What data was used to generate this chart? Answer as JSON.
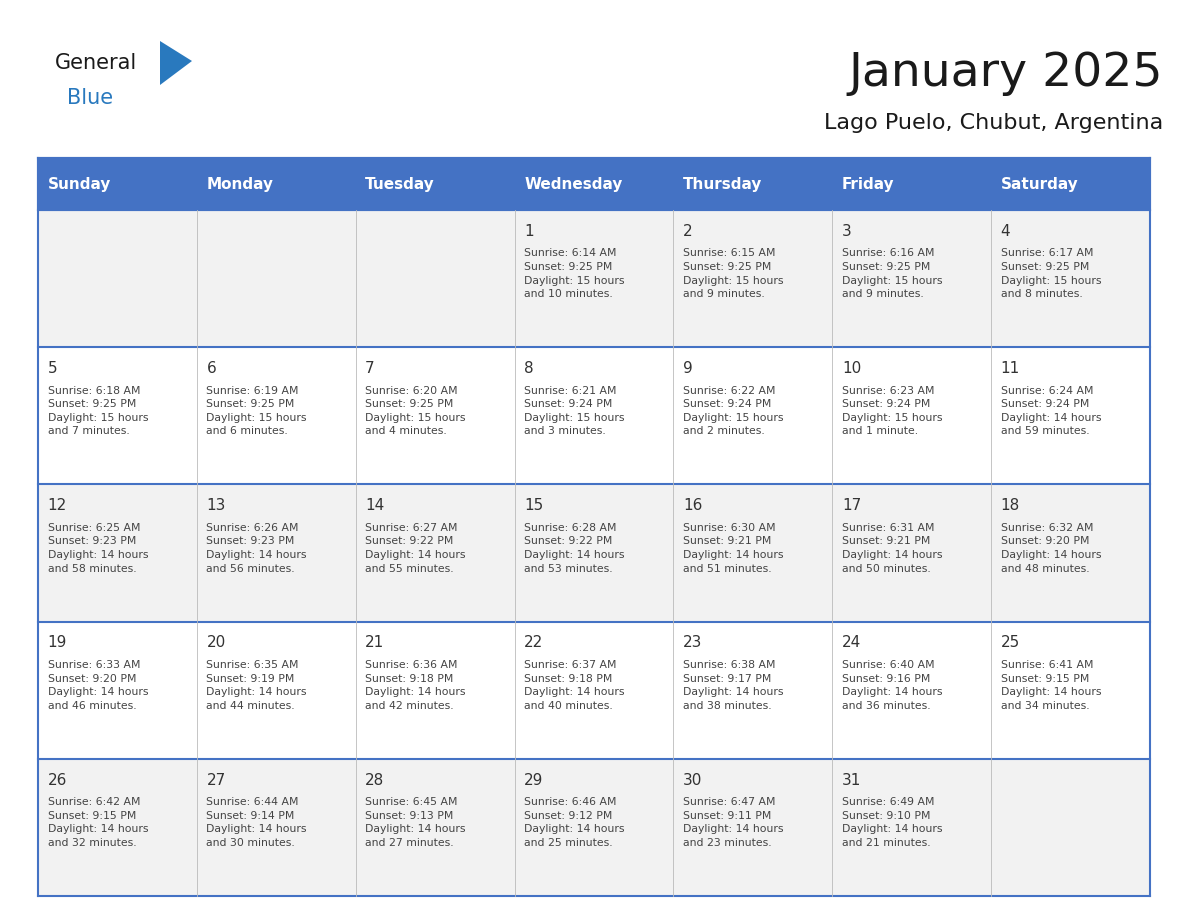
{
  "title": "January 2025",
  "subtitle": "Lago Puelo, Chubut, Argentina",
  "days_of_week": [
    "Sunday",
    "Monday",
    "Tuesday",
    "Wednesday",
    "Thursday",
    "Friday",
    "Saturday"
  ],
  "header_bg": "#4472C4",
  "header_text": "#FFFFFF",
  "row_bg_odd": "#F2F2F2",
  "row_bg_even": "#FFFFFF",
  "cell_text_color": "#444444",
  "day_num_color": "#333333",
  "border_color": "#4472C4",
  "title_color": "#1a1a1a",
  "subtitle_color": "#1a1a1a",
  "general_color": "#1a1a1a",
  "blue_color": "#2979BE",
  "calendar_data": [
    [
      {
        "day": "",
        "info": ""
      },
      {
        "day": "",
        "info": ""
      },
      {
        "day": "",
        "info": ""
      },
      {
        "day": "1",
        "info": "Sunrise: 6:14 AM\nSunset: 9:25 PM\nDaylight: 15 hours\nand 10 minutes."
      },
      {
        "day": "2",
        "info": "Sunrise: 6:15 AM\nSunset: 9:25 PM\nDaylight: 15 hours\nand 9 minutes."
      },
      {
        "day": "3",
        "info": "Sunrise: 6:16 AM\nSunset: 9:25 PM\nDaylight: 15 hours\nand 9 minutes."
      },
      {
        "day": "4",
        "info": "Sunrise: 6:17 AM\nSunset: 9:25 PM\nDaylight: 15 hours\nand 8 minutes."
      }
    ],
    [
      {
        "day": "5",
        "info": "Sunrise: 6:18 AM\nSunset: 9:25 PM\nDaylight: 15 hours\nand 7 minutes."
      },
      {
        "day": "6",
        "info": "Sunrise: 6:19 AM\nSunset: 9:25 PM\nDaylight: 15 hours\nand 6 minutes."
      },
      {
        "day": "7",
        "info": "Sunrise: 6:20 AM\nSunset: 9:25 PM\nDaylight: 15 hours\nand 4 minutes."
      },
      {
        "day": "8",
        "info": "Sunrise: 6:21 AM\nSunset: 9:24 PM\nDaylight: 15 hours\nand 3 minutes."
      },
      {
        "day": "9",
        "info": "Sunrise: 6:22 AM\nSunset: 9:24 PM\nDaylight: 15 hours\nand 2 minutes."
      },
      {
        "day": "10",
        "info": "Sunrise: 6:23 AM\nSunset: 9:24 PM\nDaylight: 15 hours\nand 1 minute."
      },
      {
        "day": "11",
        "info": "Sunrise: 6:24 AM\nSunset: 9:24 PM\nDaylight: 14 hours\nand 59 minutes."
      }
    ],
    [
      {
        "day": "12",
        "info": "Sunrise: 6:25 AM\nSunset: 9:23 PM\nDaylight: 14 hours\nand 58 minutes."
      },
      {
        "day": "13",
        "info": "Sunrise: 6:26 AM\nSunset: 9:23 PM\nDaylight: 14 hours\nand 56 minutes."
      },
      {
        "day": "14",
        "info": "Sunrise: 6:27 AM\nSunset: 9:22 PM\nDaylight: 14 hours\nand 55 minutes."
      },
      {
        "day": "15",
        "info": "Sunrise: 6:28 AM\nSunset: 9:22 PM\nDaylight: 14 hours\nand 53 minutes."
      },
      {
        "day": "16",
        "info": "Sunrise: 6:30 AM\nSunset: 9:21 PM\nDaylight: 14 hours\nand 51 minutes."
      },
      {
        "day": "17",
        "info": "Sunrise: 6:31 AM\nSunset: 9:21 PM\nDaylight: 14 hours\nand 50 minutes."
      },
      {
        "day": "18",
        "info": "Sunrise: 6:32 AM\nSunset: 9:20 PM\nDaylight: 14 hours\nand 48 minutes."
      }
    ],
    [
      {
        "day": "19",
        "info": "Sunrise: 6:33 AM\nSunset: 9:20 PM\nDaylight: 14 hours\nand 46 minutes."
      },
      {
        "day": "20",
        "info": "Sunrise: 6:35 AM\nSunset: 9:19 PM\nDaylight: 14 hours\nand 44 minutes."
      },
      {
        "day": "21",
        "info": "Sunrise: 6:36 AM\nSunset: 9:18 PM\nDaylight: 14 hours\nand 42 minutes."
      },
      {
        "day": "22",
        "info": "Sunrise: 6:37 AM\nSunset: 9:18 PM\nDaylight: 14 hours\nand 40 minutes."
      },
      {
        "day": "23",
        "info": "Sunrise: 6:38 AM\nSunset: 9:17 PM\nDaylight: 14 hours\nand 38 minutes."
      },
      {
        "day": "24",
        "info": "Sunrise: 6:40 AM\nSunset: 9:16 PM\nDaylight: 14 hours\nand 36 minutes."
      },
      {
        "day": "25",
        "info": "Sunrise: 6:41 AM\nSunset: 9:15 PM\nDaylight: 14 hours\nand 34 minutes."
      }
    ],
    [
      {
        "day": "26",
        "info": "Sunrise: 6:42 AM\nSunset: 9:15 PM\nDaylight: 14 hours\nand 32 minutes."
      },
      {
        "day": "27",
        "info": "Sunrise: 6:44 AM\nSunset: 9:14 PM\nDaylight: 14 hours\nand 30 minutes."
      },
      {
        "day": "28",
        "info": "Sunrise: 6:45 AM\nSunset: 9:13 PM\nDaylight: 14 hours\nand 27 minutes."
      },
      {
        "day": "29",
        "info": "Sunrise: 6:46 AM\nSunset: 9:12 PM\nDaylight: 14 hours\nand 25 minutes."
      },
      {
        "day": "30",
        "info": "Sunrise: 6:47 AM\nSunset: 9:11 PM\nDaylight: 14 hours\nand 23 minutes."
      },
      {
        "day": "31",
        "info": "Sunrise: 6:49 AM\nSunset: 9:10 PM\nDaylight: 14 hours\nand 21 minutes."
      },
      {
        "day": "",
        "info": ""
      }
    ]
  ],
  "logo_general_fontsize": 15,
  "logo_blue_fontsize": 15,
  "title_fontsize": 34,
  "subtitle_fontsize": 16,
  "header_fontsize": 11,
  "day_num_fontsize": 11,
  "cell_fontsize": 7.8
}
